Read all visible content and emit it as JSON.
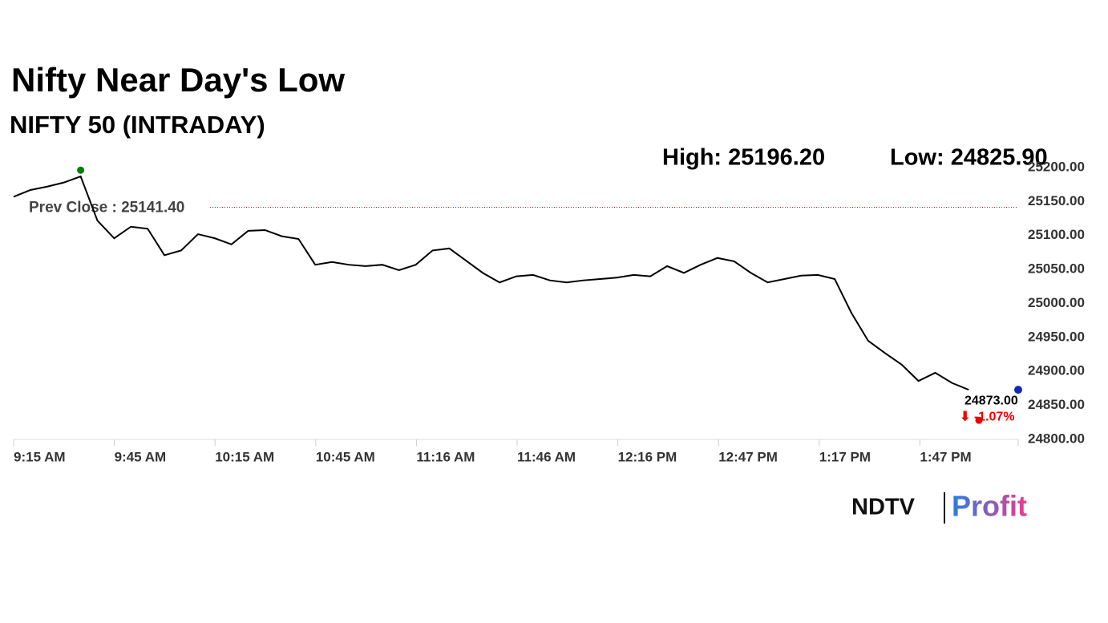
{
  "chart_data": {
    "type": "line",
    "title": "Nifty Near Day's Low",
    "subtitle": "NIFTY 50 (INTRADAY)",
    "high": {
      "value": 25196.2,
      "label": "High: 25196.20"
    },
    "low": {
      "value": 24825.9,
      "label": "Low: 24825.90"
    },
    "prev_close": {
      "value": 25141.4,
      "label": "Prev Close : 25141.40"
    },
    "last": {
      "value": 24873,
      "label": "24873.00"
    },
    "change": {
      "value": -1.07,
      "label": "⬇ -1.07%"
    },
    "x": [
      "9:15 AM",
      "9:20 AM",
      "9:25 AM",
      "9:30 AM",
      "9:35 AM",
      "9:40 AM",
      "9:45 AM",
      "9:50 AM",
      "9:55 AM",
      "10:00 AM",
      "10:05 AM",
      "10:10 AM",
      "10:15 AM",
      "10:20 AM",
      "10:25 AM",
      "10:30 AM",
      "10:35 AM",
      "10:40 AM",
      "10:45 AM",
      "10:50 AM",
      "10:55 AM",
      "11:00 AM",
      "11:05 AM",
      "11:10 AM",
      "11:15 AM",
      "11:20 AM",
      "11:25 AM",
      "11:30 AM",
      "11:35 AM",
      "11:40 AM",
      "11:45 AM",
      "11:50 AM",
      "11:55 AM",
      "12:00 PM",
      "12:05 PM",
      "12:10 PM",
      "12:15 PM",
      "12:20 PM",
      "12:25 PM",
      "12:30 PM",
      "12:35 PM",
      "12:40 PM",
      "12:45 PM",
      "12:50 PM",
      "12:55 PM",
      "1:00 PM",
      "1:05 PM",
      "1:10 PM",
      "1:15 PM",
      "1:20 PM",
      "1:25 PM",
      "1:30 PM",
      "1:35 PM",
      "1:40 PM",
      "1:45 PM",
      "1:50 PM",
      "1:55 PM",
      "2:00 PM"
    ],
    "series": [
      {
        "name": "NIFTY 50",
        "color": "#000000",
        "values": [
          25157,
          25167,
          25172,
          25178,
          25187,
          25122,
          25096,
          25113,
          25110,
          25071,
          25078,
          25102,
          25096,
          25087,
          25107,
          25108,
          25099,
          25095,
          25057,
          25061,
          25057,
          25055,
          25057,
          25049,
          25057,
          25078,
          25081,
          25063,
          25045,
          25031,
          25040,
          25042,
          25034,
          25031,
          25034,
          25036,
          25038,
          25042,
          25040,
          25055,
          25045,
          25057,
          25067,
          25062,
          25045,
          25031,
          25036,
          25041,
          25042,
          25036,
          24986,
          24945,
          24927,
          24910,
          24886,
          24898,
          24883,
          24873
        ]
      }
    ],
    "xticks": [
      "9:15 AM",
      "9:45 AM",
      "10:15 AM",
      "10:45 AM",
      "11:16 AM",
      "11:46 AM",
      "12:16 PM",
      "12:47 PM",
      "1:17 PM",
      "1:47 PM"
    ],
    "ylim": [
      24800,
      25200
    ],
    "yticks": [
      {
        "value": 24800,
        "label": "24800.00"
      },
      {
        "value": 24850,
        "label": "24850.00"
      },
      {
        "value": 24900,
        "label": "24900.00"
      },
      {
        "value": 24950,
        "label": "24950.00"
      },
      {
        "value": 25000,
        "label": "25000.00"
      },
      {
        "value": 25050,
        "label": "25050.00"
      },
      {
        "value": 25100,
        "label": "25100.00"
      },
      {
        "value": 25150,
        "label": "25150.00"
      },
      {
        "value": 25200,
        "label": "25200.00"
      }
    ],
    "brand": [
      "NDTV",
      "Profit"
    ]
  }
}
